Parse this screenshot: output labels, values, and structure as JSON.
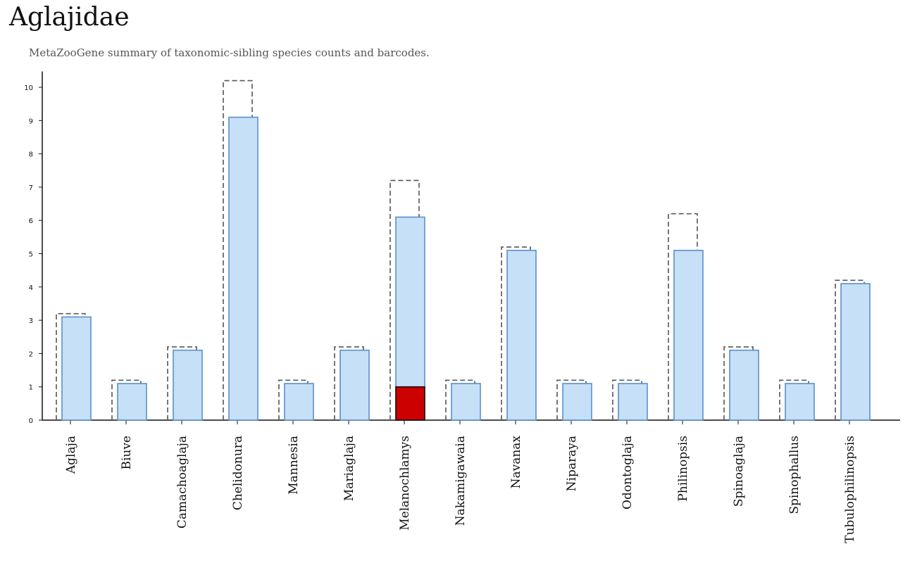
{
  "header": {
    "title": "Aglajidae",
    "subtitle": "MetaZooGene summary of taxonomic-sibling species counts and barcodes."
  },
  "colors": {
    "bar_fill": "#c6e0f8",
    "bar_stroke": "#5b8fc9",
    "highlight_fill": "#cc0000",
    "highlight_stroke": "#111111",
    "dashed_outline": "#555555",
    "axis": "#111111"
  },
  "chart_data": {
    "type": "bar",
    "categories": [
      "Aglaja",
      "Biuve",
      "Camachoaglaja",
      "Chelidonura",
      "Mannesia",
      "Mariaglaja",
      "Melanochlamys",
      "Nakamigawaia",
      "Navanax",
      "Niparaya",
      "Odontoglaja",
      "Philinopsis",
      "Spinoaglaja",
      "Spinophallus",
      "Tubulophilinopsis"
    ],
    "series": [
      {
        "style": "dashed-outline",
        "values": [
          3.2,
          1.2,
          2.2,
          10.2,
          1.2,
          2.2,
          7.2,
          1.2,
          5.2,
          1.2,
          1.2,
          6.2,
          2.2,
          1.2,
          4.2
        ]
      },
      {
        "style": "filled",
        "values": [
          3.1,
          1.1,
          2.1,
          9.1,
          1.1,
          2.1,
          6.1,
          1.1,
          5.1,
          1.1,
          1.1,
          5.1,
          2.1,
          1.1,
          4.1
        ]
      },
      {
        "style": "highlight",
        "values": [
          0,
          0,
          0,
          0,
          0,
          0,
          1,
          0,
          0,
          0,
          0,
          0,
          0,
          0,
          0
        ]
      }
    ],
    "yticks": [
      0,
      1,
      2,
      3,
      4,
      5,
      6,
      7,
      8,
      9,
      10
    ],
    "ylim": [
      0,
      10.2
    ],
    "xlabel": "",
    "ylabel": "",
    "grid": false,
    "legend": "none"
  }
}
